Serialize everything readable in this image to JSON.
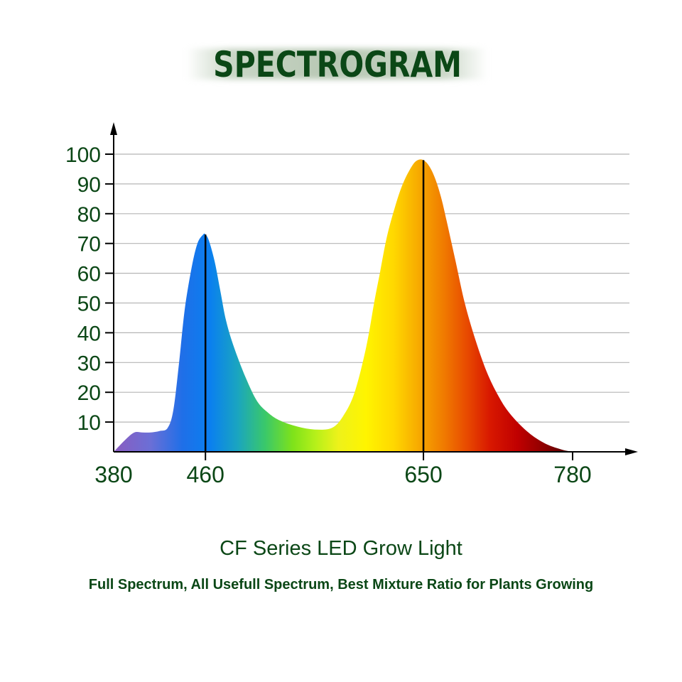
{
  "header": {
    "title": "SPECTROGRAM"
  },
  "footer": {
    "product_name": "CF Series LED Grow Light",
    "tagline": "Full Spectrum, All Usefull Spectrum, Best Mixture Ratio for Plants Growing"
  },
  "colors": {
    "text": "#0b4716",
    "grid": "#b5b5b5",
    "axis": "#000000"
  },
  "chart_data": {
    "type": "area",
    "title": "SPECTROGRAM",
    "xlabel": "",
    "ylabel": "",
    "xlim": [
      380,
      780
    ],
    "ylim": [
      0,
      100
    ],
    "grid": true,
    "x_ticks": [
      "380",
      "460",
      "650",
      "780"
    ],
    "y_ticks": [
      "10",
      "20",
      "30",
      "40",
      "50",
      "60",
      "70",
      "80",
      "90",
      "100"
    ],
    "peak_lines": [
      460,
      650
    ],
    "x": [
      380,
      390,
      398,
      405,
      412,
      420,
      427,
      432,
      437,
      442,
      448,
      453,
      458,
      460,
      463,
      468,
      473,
      478,
      485,
      495,
      505,
      515,
      525,
      540,
      555,
      570,
      580,
      590,
      600,
      607,
      612,
      618,
      625,
      632,
      640,
      645,
      650,
      655,
      660,
      665,
      670,
      678,
      686,
      695,
      705,
      715,
      725,
      740,
      755,
      770,
      780
    ],
    "values": [
      0,
      4,
      6.5,
      6.5,
      6.5,
      7,
      8,
      14,
      30,
      48,
      62,
      70,
      73,
      73,
      71,
      64,
      54,
      44,
      35,
      25,
      17,
      13,
      10.5,
      8.5,
      7.5,
      8,
      12,
      20,
      35,
      50,
      60,
      72,
      82,
      90,
      96,
      98,
      98,
      96,
      92,
      86,
      78,
      64,
      50,
      38,
      27,
      19,
      13,
      7,
      3,
      0.8,
      0
    ]
  }
}
